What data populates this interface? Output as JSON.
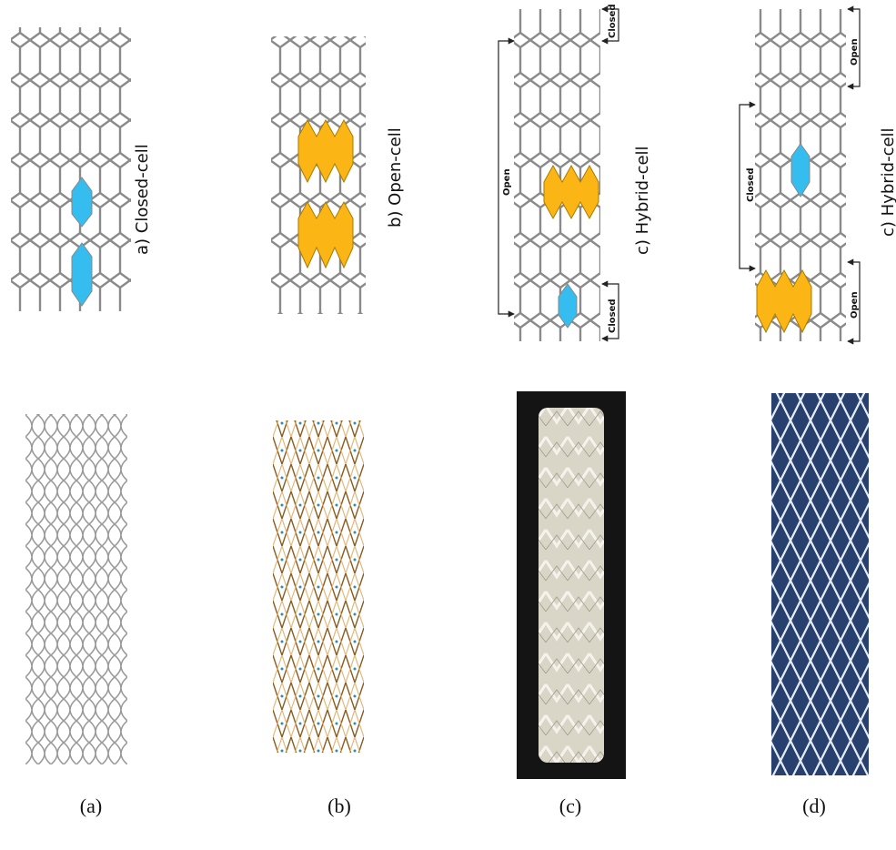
{
  "panels": [
    {
      "label": "a) Closed-cell",
      "caption": "(a)"
    },
    {
      "label": "b) Open-cell",
      "caption": "(b)"
    },
    {
      "label": "c) Hybrid-cell",
      "caption": "(c)",
      "annotations": [
        "Open",
        "Closed",
        "Closed"
      ]
    },
    {
      "label": "c) Hybrid-cell",
      "caption": "(d)",
      "annotations": [
        "Open",
        "Closed",
        "Open"
      ]
    }
  ]
}
